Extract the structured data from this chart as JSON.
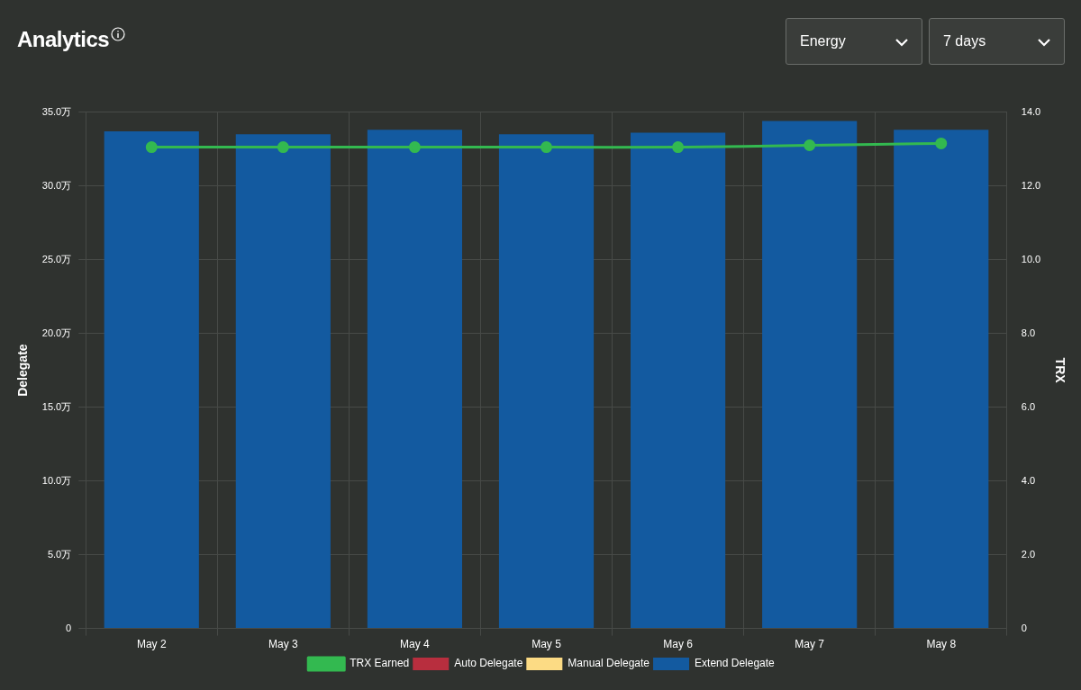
{
  "chart_data": {
    "type": "bar",
    "title": "Analytics",
    "annotations": [
      "Energy",
      "7 days"
    ],
    "categories": [
      "May 2",
      "May 3",
      "May 4",
      "May 5",
      "May 6",
      "May 7",
      "May 8"
    ],
    "stacked": true,
    "ylabel": "Delegate",
    "y2label": "TRX",
    "series": [
      {
        "name": "TRX Earned",
        "type": "line",
        "axis": "y2",
        "color": "#33b950",
        "marker": "circle",
        "values": [
          13.05,
          13.05,
          13.05,
          13.05,
          13.05,
          13.1,
          13.15
        ]
      },
      {
        "name": "Auto Delegate",
        "color": "#b82e3e",
        "values": [
          0,
          0,
          0,
          0,
          0,
          0,
          0
        ]
      },
      {
        "name": "Manual Delegate",
        "color": "#fcdb84",
        "values": [
          0,
          0,
          0,
          0,
          0,
          0,
          0
        ]
      },
      {
        "name": "Extend Delegate",
        "color": "#135aa0",
        "values": [
          33.7,
          33.5,
          33.8,
          33.5,
          33.6,
          34.4,
          33.8
        ]
      }
    ],
    "ylim": [
      0,
      35
    ],
    "yticks": [
      0,
      {
        "value": 5,
        "label": "5.0万"
      },
      {
        "value": 10,
        "label": "10.0万"
      },
      {
        "value": 15,
        "label": "15.0万"
      },
      {
        "value": 20,
        "label": "20.0万"
      },
      {
        "value": 25,
        "label": "25.0万"
      },
      {
        "value": 30,
        "label": "30.0万"
      },
      {
        "value": 35,
        "label": "35.0万"
      }
    ],
    "y2lim": [
      0,
      14
    ],
    "y2ticks": [
      0,
      {
        "value": 2,
        "label": "2.0"
      },
      {
        "value": 4,
        "label": "4.0"
      },
      {
        "value": 6,
        "label": "6.0"
      },
      {
        "value": 8,
        "label": "8.0"
      },
      {
        "value": 10,
        "label": "10.0"
      },
      {
        "value": 12,
        "label": "12.0"
      },
      {
        "value": 14,
        "label": "14.0"
      }
    ],
    "grid": true,
    "legend": "bottom"
  }
}
